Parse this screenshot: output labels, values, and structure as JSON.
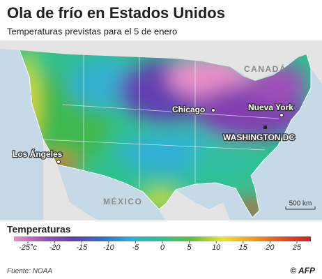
{
  "header": {
    "title": "Ola de frío en Estados Unidos",
    "subtitle": "Temperaturas previstas para el 5 de enero"
  },
  "map": {
    "countries": [
      "CANADÁ",
      "MÉXICO"
    ],
    "cities": [
      "Chicago",
      "Nueva York",
      "WASHINGTON DC",
      "Los Ángeles"
    ],
    "scale_bar": "500 km"
  },
  "legend": {
    "title": "Temperaturas",
    "ticks": [
      {
        "value": -25,
        "label": "-25°c"
      },
      -20,
      -15,
      -10,
      -5,
      0,
      5,
      10,
      15,
      20,
      25
    ],
    "colors": [
      "#e890c8",
      "#a050b8",
      "#6040b0",
      "#3070d0",
      "#30b0d8",
      "#30c090",
      "#60c040",
      "#e8e030",
      "#f0a020",
      "#e85020",
      "#d02020"
    ]
  },
  "footer": {
    "source": "Fuente: NOAA",
    "credit": "© AFP"
  }
}
